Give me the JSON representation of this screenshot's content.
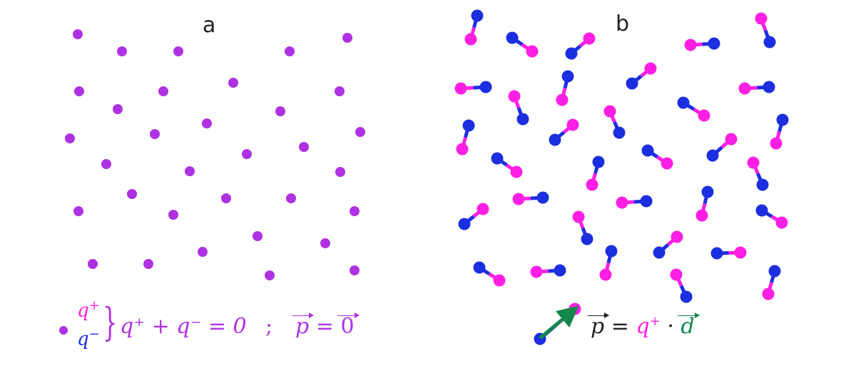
{
  "panel_a": {
    "label": "a",
    "legend": {
      "q_plus": "q",
      "plus_sup": "+",
      "q_minus": "q",
      "minus_sup": "−",
      "brace": "}",
      "sum": "q⁺ + q⁻ = 0",
      "sep": ";",
      "p": "p",
      "eq": "=",
      "zero": "0"
    }
  },
  "panel_b": {
    "label": "b",
    "legend": {
      "p": "p",
      "eq": "=",
      "q": "q",
      "plus_sup": "+",
      "dot": "·",
      "d": "d"
    }
  },
  "colors": {
    "neutral": "#ae32e4",
    "positive": "#ff1fe4",
    "negative": "#1b2fe0",
    "dipole_vector": "#13874b",
    "text": "#222222"
  }
}
